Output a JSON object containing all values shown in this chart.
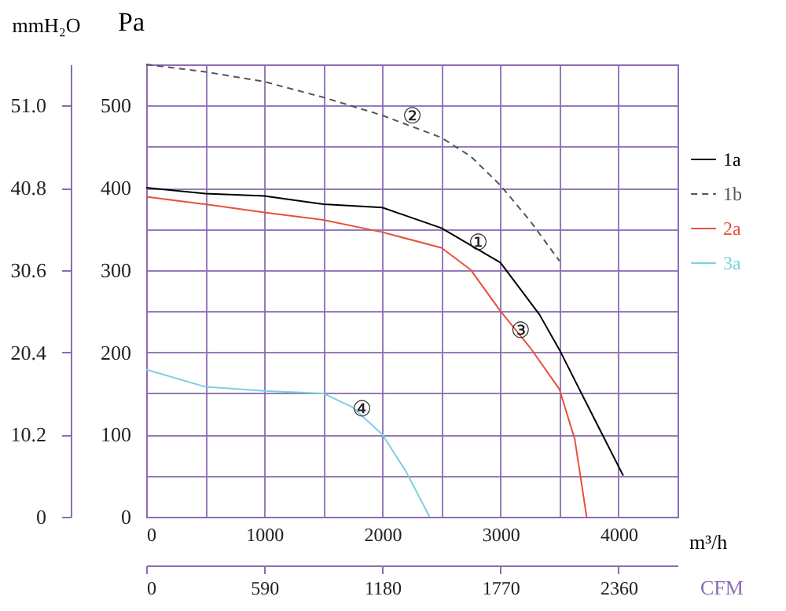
{
  "chart_data": {
    "type": "line",
    "xlabel": "m³/h",
    "x2label": "CFM",
    "ylabel": "Pa",
    "y2label": "mmH₂O",
    "xlim": [
      0,
      4500
    ],
    "xticks": [
      0,
      {
        "value": 500,
        "label": null
      },
      1000,
      {
        "value": 1500,
        "label": null
      },
      2000,
      {
        "value": 2500,
        "label": null
      },
      3000,
      {
        "value": 3500,
        "label": null
      },
      4000,
      {
        "value": 4500,
        "label": null
      }
    ],
    "x2lim": [
      0,
      2655
    ],
    "x2ticks": [
      0,
      590,
      1180,
      1770,
      2360
    ],
    "ylim": [
      0,
      550
    ],
    "yticks": [
      0,
      {
        "value": 50,
        "label": null
      },
      100,
      {
        "value": 150,
        "label": null
      },
      200,
      {
        "value": 250,
        "label": null
      },
      300,
      {
        "value": 350,
        "label": null
      },
      400,
      {
        "value": 450,
        "label": null
      },
      500
    ],
    "y2lim": [
      0,
      56.1
    ],
    "y2ticks": [
      0,
      10.2,
      20.4,
      30.6,
      40.8,
      {
        "value": 51,
        "label": "51.0"
      }
    ],
    "grid": true,
    "legend": "right",
    "marker": "none",
    "series": [
      {
        "name": "1a",
        "color": "#000000",
        "line_style": "solid",
        "x": [
          0,
          500,
          1000,
          1500,
          2000,
          2500,
          3000,
          3330,
          3500,
          3750,
          4040
        ],
        "values": [
          400,
          393,
          390,
          380,
          376,
          351,
          309,
          246,
          203,
          132,
          50
        ]
      },
      {
        "name": "1b",
        "color": "#555555",
        "line_style": "dashed",
        "x": [
          0,
          500,
          1000,
          1500,
          2000,
          2500,
          2750,
          3000,
          3250,
          3500
        ],
        "values": [
          550,
          541,
          529,
          510,
          488,
          461,
          438,
          403,
          360,
          311
        ]
      },
      {
        "name": "2a",
        "color": "#e8503a",
        "line_style": "solid",
        "x": [
          0,
          500,
          1000,
          1500,
          2000,
          2500,
          2750,
          3000,
          3250,
          3500,
          3630,
          3730
        ],
        "values": [
          389,
          380,
          370,
          361,
          346,
          327,
          300,
          250,
          206,
          155,
          94,
          0
        ]
      },
      {
        "name": "3a",
        "color": "#7fcfdf",
        "line_style": "solid",
        "x": [
          0,
          500,
          1000,
          1500,
          1750,
          2000,
          2200,
          2400
        ],
        "values": [
          179,
          158,
          153,
          150,
          133,
          100,
          55,
          0
        ]
      }
    ],
    "annotations": [
      {
        "text": "①",
        "x": 2813,
        "y": 332
      },
      {
        "text": "②",
        "x": 2253,
        "y": 486
      },
      {
        "text": "③",
        "x": 3170,
        "y": 225
      },
      {
        "text": "④",
        "x": 1827,
        "y": 130
      }
    ]
  }
}
